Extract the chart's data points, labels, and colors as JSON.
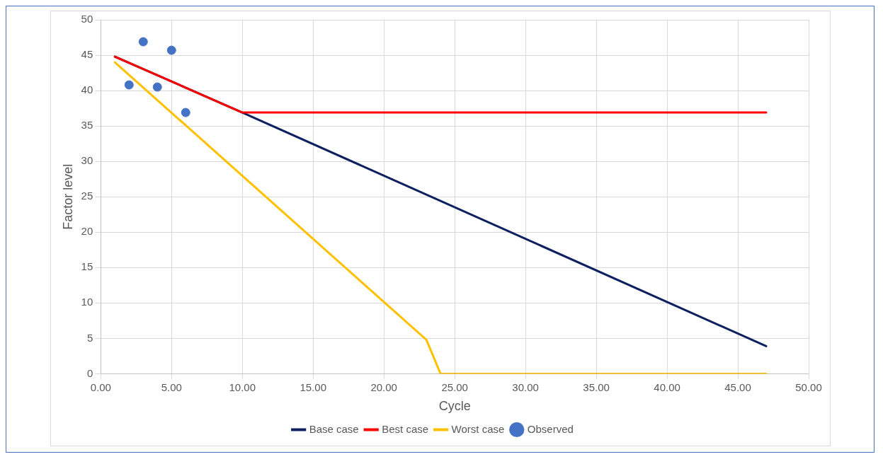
{
  "chart_data": {
    "type": "line",
    "xlabel": "Cycle",
    "ylabel": "Factor level",
    "xlim": [
      0,
      50
    ],
    "xticks": [
      {
        "value": 0,
        "label": "0.00"
      },
      {
        "value": 5,
        "label": "5.00"
      },
      {
        "value": 10,
        "label": "10.00"
      },
      {
        "value": 15,
        "label": "15.00"
      },
      {
        "value": 20,
        "label": "20.00"
      },
      {
        "value": 25,
        "label": "25.00"
      },
      {
        "value": 30,
        "label": "30.00"
      },
      {
        "value": 35,
        "label": "35.00"
      },
      {
        "value": 40,
        "label": "40.00"
      },
      {
        "value": 45,
        "label": "45.00"
      },
      {
        "value": 50,
        "label": "50.00"
      }
    ],
    "ylim": [
      0,
      50
    ],
    "yticks": [
      0,
      5,
      10,
      15,
      20,
      25,
      30,
      35,
      40,
      45,
      50
    ],
    "grid": true,
    "legend": "bottom",
    "marker": "none",
    "line_style": "solid",
    "series": [
      {
        "name": "Base case",
        "color": "#0e2060",
        "x": [
          1,
          10,
          47
        ],
        "values": [
          44.8,
          36.9,
          3.9
        ]
      },
      {
        "name": "Best case",
        "color": "#ff0000",
        "x": [
          1,
          10,
          11,
          47
        ],
        "values": [
          44.8,
          36.9,
          36.9,
          36.9
        ]
      },
      {
        "name": "Worst case",
        "color": "#ffc000",
        "x": [
          1,
          23,
          24,
          47
        ],
        "values": [
          44,
          4.8,
          0,
          0
        ]
      },
      {
        "name": "Observed",
        "type": "scatter",
        "color": "#4472c4",
        "marker": "circle",
        "x": [
          2,
          3,
          4,
          5,
          6
        ],
        "values": [
          40.8,
          46.9,
          40.5,
          45.7,
          36.9
        ]
      }
    ]
  }
}
